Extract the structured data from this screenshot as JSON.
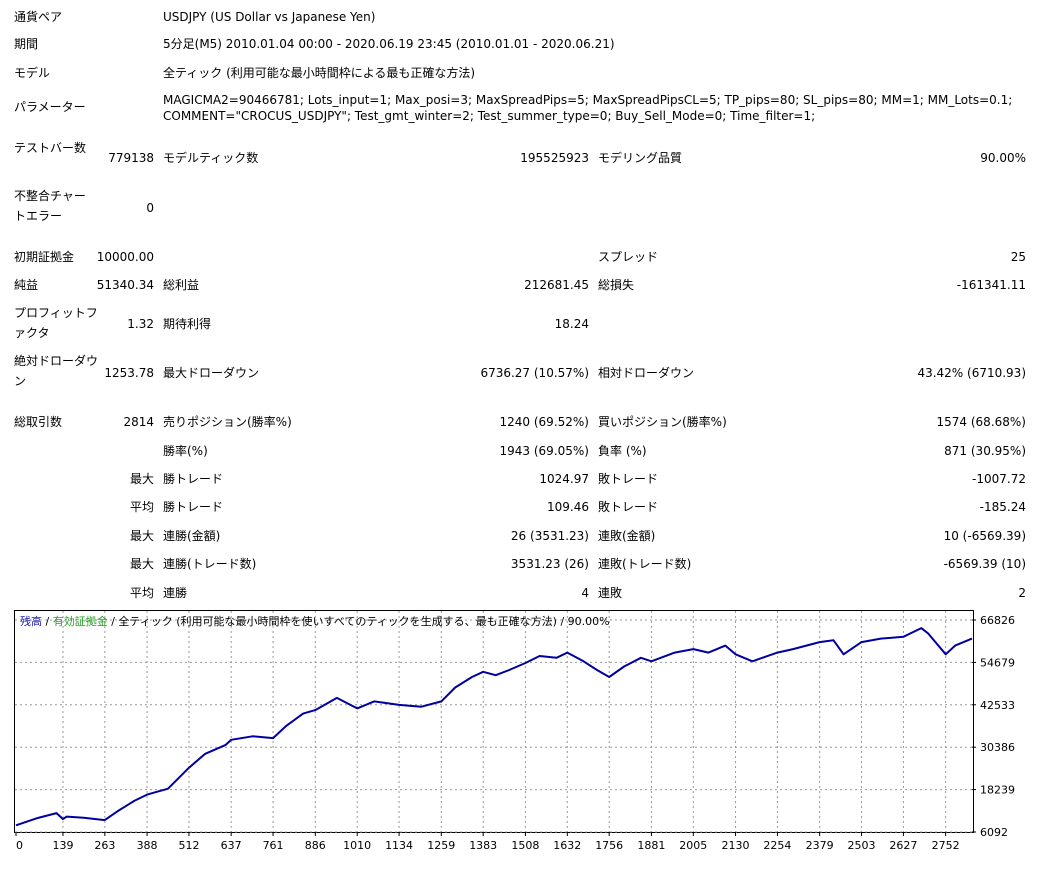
{
  "header": {
    "pair_label": "通貨ペア",
    "pair_value": "USDJPY (US Dollar vs Japanese Yen)",
    "period_label": "期間",
    "period_value": "5分足(M5) 2010.01.04 00:00 - 2020.06.19 23:45 (2010.01.01 - 2020.06.21)",
    "model_label": "モデル",
    "model_value": "全ティック (利用可能な最小時間枠による最も正確な方法)",
    "params_label": "パラメーター",
    "params_line1": "MAGICMA2=90466781; Lots_input=1; Max_posi=3; MaxSpreadPips=5; MaxSpreadPipsCL=5; TP_pips=80; SL_pips=80; MM=1; MM_Lots=0.1;",
    "params_line2": "COMMENT=\"CROCUS_USDJPY\"; Test_gmt_winter=2; Test_summer_type=0; Buy_Sell_Mode=0; Time_filter=1;"
  },
  "stats": {
    "bars_label": "テストバー数",
    "bars_value": "779138",
    "ticks_label": "モデルティック数",
    "ticks_value": "195525923",
    "quality_label": "モデリング品質",
    "quality_value": "90.00%",
    "mismatch_label": "不整合チャートエラー",
    "mismatch_value": "0",
    "deposit_label": "初期証拠金",
    "deposit_value": "10000.00",
    "spread_label": "スプレッド",
    "spread_value": "25",
    "net_label": "純益",
    "net_value": "51340.34",
    "gross_profit_label": "総利益",
    "gross_profit_value": "212681.45",
    "gross_loss_label": "総損失",
    "gross_loss_value": "-161341.11",
    "pf_label": "プロフィットファクタ",
    "pf_value": "1.32",
    "expected_label": "期待利得",
    "expected_value": "18.24",
    "abs_dd_label": "絶対ドローダウン",
    "abs_dd_value": "1253.78",
    "max_dd_label": "最大ドローダウン",
    "max_dd_value": "6736.27 (10.57%)",
    "rel_dd_label": "相対ドローダウン",
    "rel_dd_value": "43.42% (6710.93)",
    "trades_label": "総取引数",
    "trades_value": "2814",
    "short_label": "売りポジション(勝率%)",
    "short_value": "1240 (69.52%)",
    "long_label": "買いポジション(勝率%)",
    "long_value": "1574 (68.68%)",
    "win_label": "勝率(%)",
    "win_value": "1943 (69.05%)",
    "loss_label": "負率 (%)",
    "loss_value": "871 (30.95%)",
    "max_word": "最大",
    "avg_word": "平均",
    "largest_win_label": "勝トレード",
    "largest_win_value": "1024.97",
    "largest_loss_label": "敗トレード",
    "largest_loss_value": "-1007.72",
    "avg_win_label": "勝トレード",
    "avg_win_value": "109.46",
    "avg_loss_label": "敗トレード",
    "avg_loss_value": "-185.24",
    "max_cons_win_label": "連勝(金額)",
    "max_cons_win_value": "26 (3531.23)",
    "max_cons_loss_label": "連敗(金額)",
    "max_cons_loss_value": "10 (-6569.39)",
    "max_cons_profit_label": "連勝(トレード数)",
    "max_cons_profit_value": "3531.23 (26)",
    "max_cons_lossamt_label": "連敗(トレード数)",
    "max_cons_lossamt_value": "-6569.39 (10)",
    "avg_cons_win_label": "連勝",
    "avg_cons_win_value": "4",
    "avg_cons_loss_label": "連敗",
    "avg_cons_loss_value": "2"
  },
  "chart_caption": {
    "balance": "残高",
    "sep1": " / ",
    "equity": "有効証拠金",
    "rest": " / 全ティック (利用可能な最小時間枠を使いすべてのティックを生成する、最も正確な方法) / 90.00%"
  },
  "chart_data": {
    "type": "line",
    "series": [
      {
        "x": [
          0,
          60,
          120,
          139,
          150,
          200,
          263,
          300,
          350,
          388,
          450,
          512,
          560,
          620,
          637,
          700,
          761,
          800,
          850,
          886,
          950,
          1010,
          1060,
          1100,
          1134,
          1200,
          1259,
          1300,
          1350,
          1383,
          1420,
          1460,
          1508,
          1550,
          1600,
          1632,
          1680,
          1720,
          1756,
          1800,
          1850,
          1881,
          1950,
          2005,
          2050,
          2100,
          2130,
          2180,
          2254,
          2300,
          2379,
          2420,
          2450,
          2503,
          2560,
          2627,
          2680,
          2700,
          2752,
          2780,
          2830
        ],
        "values": [
          8000,
          10000,
          11500,
          9800,
          10500,
          10200,
          9500,
          12000,
          15000,
          16800,
          18500,
          24500,
          28500,
          31000,
          32500,
          33500,
          33000,
          36500,
          40000,
          41000,
          44500,
          41500,
          43500,
          43000,
          42500,
          42000,
          43500,
          47500,
          50500,
          52000,
          51000,
          52500,
          54500,
          56500,
          56000,
          57500,
          55000,
          52500,
          50500,
          53500,
          56000,
          55000,
          57500,
          58500,
          57500,
          59500,
          57000,
          55000,
          57500,
          58500,
          60500,
          61000,
          57000,
          60500,
          61500,
          62000,
          64500,
          63000,
          57000,
          59500,
          61500
        ]
      }
    ],
    "x_ticks": [
      0,
      139,
      263,
      388,
      512,
      637,
      761,
      886,
      1010,
      1134,
      1259,
      1383,
      1508,
      1632,
      1756,
      1881,
      2005,
      2130,
      2254,
      2379,
      2503,
      2627,
      2752
    ],
    "y_ticks": [
      6092,
      18239,
      30386,
      42533,
      54679,
      66826
    ],
    "xlim": [
      0,
      2830
    ],
    "ylim": [
      6092,
      66826
    ],
    "line_color": "#0000a0",
    "grid": true
  }
}
